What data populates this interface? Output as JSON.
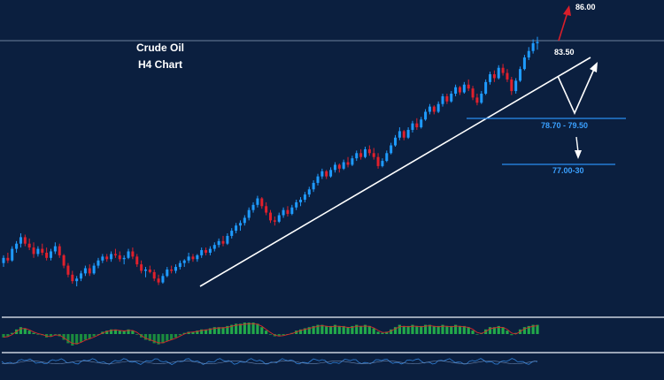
{
  "chart_data": {
    "type": "candlestick",
    "title": "Crude Oil",
    "subtitle": "H4 Chart",
    "price_lines": [
      {
        "label": "83.50",
        "value": 83.5
      }
    ],
    "target_label": "86.00",
    "target_value": 86.0,
    "support_zones": [
      {
        "label": "78.70 - 79.50",
        "value": 79.1
      },
      {
        "label": "77.00-30",
        "value": 77.15
      }
    ],
    "ohlc": [
      [
        66.3,
        66.9,
        66.0,
        66.7
      ],
      [
        66.7,
        67.1,
        66.3,
        66.5
      ],
      [
        66.5,
        67.6,
        66.4,
        67.4
      ],
      [
        67.4,
        68.0,
        67.1,
        67.8
      ],
      [
        67.8,
        68.6,
        67.5,
        68.3
      ],
      [
        68.3,
        68.5,
        67.6,
        67.8
      ],
      [
        67.8,
        68.2,
        67.3,
        67.5
      ],
      [
        67.5,
        67.9,
        66.7,
        67.0
      ],
      [
        67.0,
        67.6,
        66.8,
        67.4
      ],
      [
        67.4,
        67.8,
        66.9,
        67.1
      ],
      [
        67.1,
        67.5,
        66.5,
        66.7
      ],
      [
        66.7,
        67.4,
        66.5,
        67.2
      ],
      [
        67.2,
        67.9,
        67.0,
        67.6
      ],
      [
        67.6,
        67.8,
        66.7,
        66.9
      ],
      [
        66.9,
        67.0,
        65.9,
        66.1
      ],
      [
        66.1,
        66.3,
        65.2,
        65.4
      ],
      [
        65.4,
        65.7,
        64.7,
        64.9
      ],
      [
        64.9,
        65.3,
        64.5,
        65.1
      ],
      [
        65.1,
        65.7,
        64.9,
        65.5
      ],
      [
        65.5,
        66.1,
        65.3,
        65.9
      ],
      [
        65.9,
        66.2,
        65.3,
        65.5
      ],
      [
        65.5,
        66.3,
        65.4,
        66.1
      ],
      [
        66.1,
        66.7,
        65.9,
        66.5
      ],
      [
        66.5,
        67.0,
        66.3,
        66.8
      ],
      [
        66.8,
        67.0,
        66.4,
        66.6
      ],
      [
        66.6,
        67.2,
        66.4,
        67.0
      ],
      [
        67.0,
        67.4,
        66.7,
        66.9
      ],
      [
        66.9,
        67.2,
        66.4,
        66.6
      ],
      [
        66.6,
        66.9,
        66.2,
        66.7
      ],
      [
        66.7,
        67.4,
        66.6,
        67.2
      ],
      [
        67.2,
        67.5,
        66.6,
        66.8
      ],
      [
        66.8,
        67.0,
        66.0,
        66.2
      ],
      [
        66.2,
        66.5,
        65.5,
        65.7
      ],
      [
        65.7,
        66.0,
        65.2,
        65.8
      ],
      [
        65.8,
        66.1,
        65.5,
        65.6
      ],
      [
        65.6,
        65.8,
        64.9,
        65.1
      ],
      [
        65.1,
        65.4,
        64.6,
        64.8
      ],
      [
        64.8,
        65.5,
        64.7,
        65.3
      ],
      [
        65.3,
        66.0,
        65.2,
        65.8
      ],
      [
        65.8,
        66.1,
        65.5,
        65.7
      ],
      [
        65.7,
        66.2,
        65.5,
        66.0
      ],
      [
        66.0,
        66.5,
        65.8,
        66.3
      ],
      [
        66.3,
        66.6,
        66.0,
        66.5
      ],
      [
        66.5,
        67.1,
        66.3,
        66.8
      ],
      [
        66.8,
        67.0,
        66.4,
        66.6
      ],
      [
        66.6,
        67.0,
        66.4,
        66.9
      ],
      [
        66.9,
        67.5,
        66.7,
        67.3
      ],
      [
        67.3,
        67.5,
        66.9,
        67.1
      ],
      [
        67.1,
        67.6,
        66.9,
        67.4
      ],
      [
        67.4,
        67.9,
        67.2,
        67.7
      ],
      [
        67.7,
        68.2,
        67.5,
        68.0
      ],
      [
        68.0,
        68.4,
        67.6,
        67.8
      ],
      [
        67.8,
        68.6,
        67.7,
        68.4
      ],
      [
        68.4,
        69.0,
        68.2,
        68.8
      ],
      [
        68.8,
        69.4,
        68.6,
        69.2
      ],
      [
        69.2,
        69.6,
        68.8,
        69.4
      ],
      [
        69.4,
        70.0,
        69.2,
        69.8
      ],
      [
        69.8,
        70.6,
        69.6,
        70.4
      ],
      [
        70.4,
        71.0,
        70.2,
        70.8
      ],
      [
        70.8,
        71.5,
        70.6,
        71.3
      ],
      [
        71.3,
        71.4,
        70.5,
        70.7
      ],
      [
        70.7,
        71.0,
        70.0,
        70.2
      ],
      [
        70.2,
        70.4,
        69.4,
        69.6
      ],
      [
        69.6,
        69.9,
        69.2,
        69.5
      ],
      [
        69.5,
        70.2,
        69.4,
        70.0
      ],
      [
        70.0,
        70.6,
        69.8,
        70.4
      ],
      [
        70.4,
        70.7,
        69.9,
        70.1
      ],
      [
        70.1,
        70.8,
        70.0,
        70.6
      ],
      [
        70.6,
        71.2,
        70.4,
        71.0
      ],
      [
        71.0,
        71.4,
        70.7,
        71.2
      ],
      [
        71.2,
        71.8,
        71.0,
        71.6
      ],
      [
        71.6,
        72.2,
        71.4,
        72.0
      ],
      [
        72.0,
        72.7,
        71.8,
        72.5
      ],
      [
        72.5,
        73.2,
        72.3,
        73.0
      ],
      [
        73.0,
        73.6,
        72.8,
        73.4
      ],
      [
        73.4,
        73.5,
        72.8,
        73.0
      ],
      [
        73.0,
        73.7,
        72.9,
        73.5
      ],
      [
        73.5,
        74.1,
        73.3,
        73.9
      ],
      [
        73.9,
        74.0,
        73.3,
        73.6
      ],
      [
        73.6,
        74.3,
        73.5,
        74.1
      ],
      [
        74.1,
        74.5,
        73.7,
        73.9
      ],
      [
        73.9,
        74.6,
        73.8,
        74.4
      ],
      [
        74.4,
        75.0,
        74.2,
        74.8
      ],
      [
        74.8,
        75.1,
        74.3,
        74.5
      ],
      [
        74.5,
        75.3,
        74.4,
        75.1
      ],
      [
        75.1,
        75.4,
        74.6,
        74.8
      ],
      [
        74.8,
        75.2,
        74.3,
        74.5
      ],
      [
        74.5,
        74.8,
        73.6,
        73.8
      ],
      [
        73.8,
        74.4,
        73.7,
        74.2
      ],
      [
        74.2,
        75.0,
        74.1,
        74.8
      ],
      [
        74.8,
        75.6,
        74.7,
        75.4
      ],
      [
        75.4,
        76.2,
        75.3,
        76.0
      ],
      [
        76.0,
        76.8,
        75.8,
        76.5
      ],
      [
        76.5,
        76.6,
        75.8,
        76.0
      ],
      [
        76.0,
        76.8,
        75.9,
        76.6
      ],
      [
        76.6,
        77.3,
        76.4,
        77.1
      ],
      [
        77.1,
        77.5,
        76.6,
        76.8
      ],
      [
        76.8,
        77.6,
        76.7,
        77.4
      ],
      [
        77.4,
        78.2,
        77.3,
        78.0
      ],
      [
        78.0,
        78.6,
        77.8,
        78.4
      ],
      [
        78.4,
        78.5,
        77.8,
        78.0
      ],
      [
        78.0,
        78.8,
        77.9,
        78.6
      ],
      [
        78.6,
        79.4,
        78.4,
        79.2
      ],
      [
        79.2,
        79.4,
        78.6,
        78.8
      ],
      [
        78.8,
        79.6,
        78.7,
        79.4
      ],
      [
        79.4,
        80.1,
        79.2,
        79.9
      ],
      [
        79.9,
        80.0,
        79.3,
        79.5
      ],
      [
        79.5,
        80.3,
        79.4,
        80.1
      ],
      [
        80.1,
        80.5,
        79.6,
        79.8
      ],
      [
        79.8,
        80.0,
        78.9,
        79.1
      ],
      [
        79.1,
        79.4,
        78.5,
        78.7
      ],
      [
        78.7,
        79.6,
        78.6,
        79.4
      ],
      [
        79.4,
        80.5,
        79.3,
        80.3
      ],
      [
        80.3,
        81.1,
        80.1,
        80.9
      ],
      [
        80.9,
        81.2,
        80.3,
        80.6
      ],
      [
        80.6,
        81.6,
        80.5,
        81.4
      ],
      [
        81.4,
        81.7,
        80.8,
        81.0
      ],
      [
        81.0,
        81.3,
        80.3,
        80.5
      ],
      [
        80.5,
        80.7,
        79.3,
        79.6
      ],
      [
        79.6,
        80.6,
        79.4,
        80.4
      ],
      [
        80.4,
        81.5,
        80.3,
        81.3
      ],
      [
        81.3,
        82.4,
        81.2,
        82.2
      ],
      [
        82.2,
        83.0,
        82.0,
        82.7
      ],
      [
        82.7,
        83.6,
        82.5,
        83.3
      ],
      [
        83.3,
        83.8,
        82.8,
        83.4
      ]
    ],
    "macd_hist": [
      -0.3,
      -0.2,
      0.1,
      0.4,
      0.6,
      0.5,
      0.3,
      0.1,
      0.0,
      -0.1,
      -0.3,
      -0.2,
      0.0,
      -0.2,
      -0.5,
      -0.8,
      -1.0,
      -0.9,
      -0.7,
      -0.5,
      -0.4,
      -0.2,
      0.0,
      0.2,
      0.3,
      0.4,
      0.4,
      0.3,
      0.3,
      0.4,
      0.3,
      0.0,
      -0.3,
      -0.5,
      -0.6,
      -0.8,
      -0.9,
      -0.8,
      -0.6,
      -0.5,
      -0.3,
      -0.1,
      0.1,
      0.2,
      0.2,
      0.3,
      0.4,
      0.4,
      0.5,
      0.6,
      0.6,
      0.6,
      0.7,
      0.8,
      0.9,
      0.9,
      1.0,
      1.0,
      1.0,
      0.9,
      0.6,
      0.3,
      0.0,
      -0.2,
      -0.2,
      -0.1,
      0.0,
      0.1,
      0.3,
      0.4,
      0.5,
      0.6,
      0.7,
      0.8,
      0.8,
      0.7,
      0.7,
      0.8,
      0.7,
      0.7,
      0.6,
      0.7,
      0.8,
      0.7,
      0.8,
      0.7,
      0.5,
      0.2,
      0.1,
      0.2,
      0.4,
      0.6,
      0.8,
      0.7,
      0.7,
      0.8,
      0.7,
      0.7,
      0.8,
      0.8,
      0.7,
      0.7,
      0.8,
      0.7,
      0.7,
      0.8,
      0.7,
      0.7,
      0.6,
      0.3,
      0.0,
      0.1,
      0.4,
      0.6,
      0.6,
      0.7,
      0.6,
      0.3,
      -0.1,
      0.1,
      0.4,
      0.6,
      0.7,
      0.8,
      0.8
    ]
  }
}
